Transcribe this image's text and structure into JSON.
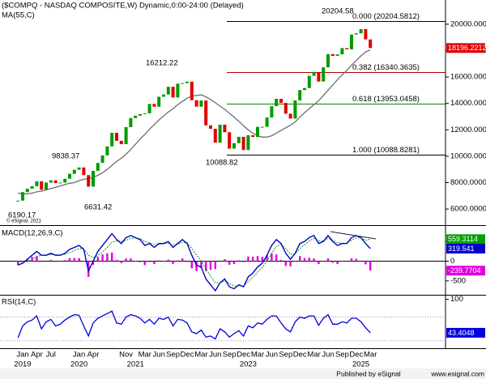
{
  "chart_data": [
    {
      "type": "candlestick",
      "title": "($COMPQ - NASDAQ COMPOSITE,W) Dynamic,0:00-24:00 (Delayed)",
      "categories": [
        null,
        "Jan",
        null,
        null,
        "Apr",
        null,
        null,
        "Jul",
        null,
        null,
        null,
        null,
        null,
        "Jan",
        null,
        null,
        "Apr",
        null,
        null,
        null,
        null,
        null,
        null,
        "Nov",
        null,
        null,
        null,
        "Mar",
        null,
        null,
        "Jun",
        null,
        null,
        "Sep",
        null,
        null,
        "Dec",
        null,
        null,
        "Mar",
        null,
        null,
        "Jun",
        null,
        null,
        "Sep",
        null,
        null,
        "Dec",
        null,
        null,
        "Mar",
        null,
        null,
        "Jun",
        null,
        null,
        "Sep",
        null,
        null,
        "Dec",
        null,
        null,
        "Mar",
        null,
        null,
        "Jun",
        null,
        null,
        "Sep",
        null,
        null,
        "Dec",
        null,
        null,
        "Mar"
      ],
      "category_years": [
        null,
        "2019",
        null,
        null,
        null,
        null,
        null,
        null,
        null,
        null,
        null,
        null,
        null,
        "2020",
        null,
        null,
        null,
        null,
        null,
        null,
        null,
        null,
        null,
        null,
        null,
        "2021",
        null,
        null,
        null,
        null,
        null,
        null,
        null,
        null,
        null,
        null,
        null,
        null,
        null,
        null,
        null,
        null,
        null,
        null,
        null,
        null,
        null,
        null,
        null,
        "2023",
        null,
        null,
        null,
        null,
        null,
        null,
        null,
        null,
        null,
        null,
        null,
        null,
        null,
        null,
        null,
        null,
        null,
        null,
        null,
        null,
        null,
        null,
        null,
        "2025",
        null,
        null
      ],
      "values": [
        6635,
        7281,
        7533,
        7729,
        8095,
        7453,
        8006,
        8175,
        7963,
        7999,
        8292,
        8665,
        8973,
        9150,
        8567,
        7700,
        8890,
        9490,
        10058,
        10745,
        11775,
        11168,
        10912,
        12199,
        12888,
        13070,
        13192,
        13247,
        13962,
        13749,
        14504,
        14673,
        15259,
        14449,
        15498,
        15538,
        15645,
        14240,
        13751,
        14221,
        12335,
        12081,
        11029,
        12391,
        11816,
        10576,
        10988,
        11468,
        10466,
        11585,
        11456,
        12222,
        12227,
        12935,
        13788,
        14346,
        14035,
        13219,
        12851,
        14226,
        15011,
        15164,
        16092,
        16379,
        15658,
        16735,
        17733,
        17599,
        17714,
        18189,
        18095,
        19218,
        19311,
        19627,
        18847,
        18196.2212
      ],
      "up_color": "#009a00",
      "down_color": "#e00000",
      "ma": {
        "name": "MA(55,C)",
        "color": "#6e6e6e",
        "values": [
          7200,
          7150,
          7150,
          7200,
          7300,
          7350,
          7450,
          7550,
          7650,
          7750,
          7850,
          7950,
          8000,
          8150,
          8250,
          8300,
          8400,
          8550,
          8750,
          9000,
          9300,
          9600,
          9850,
          10150,
          10500,
          10900,
          11300,
          11650,
          12050,
          12400,
          12750,
          13050,
          13350,
          13600,
          13900,
          14150,
          14400,
          14550,
          14600,
          14650,
          14500,
          14300,
          14050,
          13800,
          13550,
          13250,
          12950,
          12650,
          12300,
          12000,
          11750,
          11550,
          11450,
          11450,
          11550,
          11750,
          11950,
          12150,
          12350,
          12600,
          12950,
          13300,
          13600,
          13900,
          14200,
          14600,
          15000,
          15400,
          15800,
          16150,
          16500,
          16900,
          17250,
          17600,
          17900,
          18050
        ]
      },
      "ylim": [
        4840,
        20975
      ],
      "yticks": [
        {
          "value": 6000,
          "label": "6000.0000"
        },
        {
          "value": 8000,
          "label": "8000.0000"
        },
        {
          "value": 10000,
          "label": "10000.0000"
        },
        {
          "value": 12000,
          "label": "12000.0000"
        },
        {
          "value": 14000,
          "label": "14000.0000"
        },
        {
          "value": 16000,
          "label": "16000.0000"
        },
        {
          "value": 18000,
          "label": "18000.0000"
        },
        {
          "value": 20000,
          "label": "20000.0000"
        }
      ],
      "fib_levels": [
        {
          "value": 20204.5812,
          "label": "0.000 (20204.5812)",
          "color": "#000000"
        },
        {
          "value": 16340.3635,
          "label": "0.382 (16340.3635)",
          "color": "#b00000"
        },
        {
          "value": 13953.0458,
          "label": "0.618 (13953.0458)",
          "color": "#008a00"
        },
        {
          "value": 10088.8281,
          "label": "1.000 (10088.8281)",
          "color": "#000000"
        }
      ],
      "annotations": [
        "20204.58",
        "16212.22",
        "9838.37",
        "6631.42",
        "6190.17",
        "10088.82"
      ],
      "copyright": "© eSignal, 2021"
    },
    {
      "type": "macd",
      "title": "MACD(12,26,9,C)",
      "macd": {
        "color": "#0000cc",
        "values": [
          -100,
          -50,
          50,
          150,
          250,
          150,
          150,
          200,
          150,
          150,
          200,
          300,
          350,
          400,
          300,
          -250,
          0,
          250,
          400,
          550,
          700,
          550,
          450,
          600,
          650,
          600,
          550,
          400,
          450,
          350,
          450,
          450,
          500,
          350,
          450,
          550,
          450,
          150,
          -100,
          -150,
          -450,
          -600,
          -750,
          -550,
          -450,
          -650,
          -700,
          -600,
          -650,
          -400,
          -300,
          -150,
          -50,
          150,
          400,
          550,
          450,
          200,
          50,
          200,
          450,
          500,
          600,
          650,
          450,
          500,
          650,
          500,
          400,
          450,
          450,
          600,
          650,
          600,
          450,
          319.541
        ]
      },
      "signal": {
        "color": "#00a000",
        "values": [
          0,
          -40,
          -10,
          40,
          120,
          150,
          150,
          170,
          165,
          160,
          175,
          220,
          270,
          320,
          310,
          150,
          90,
          140,
          230,
          350,
          480,
          520,
          500,
          530,
          580,
          590,
          575,
          500,
          470,
          420,
          430,
          440,
          460,
          420,
          430,
          480,
          470,
          330,
          150,
          20,
          -200,
          -380,
          -550,
          -550,
          -500,
          -560,
          -630,
          -620,
          -630,
          -520,
          -410,
          -280,
          -160,
          0,
          200,
          380,
          420,
          320,
          180,
          190,
          320,
          420,
          510,
          580,
          520,
          510,
          580,
          540,
          470,
          460,
          455,
          530,
          590,
          600,
          530,
          559.3114
        ]
      },
      "histogram": {
        "color": "#e000e0",
        "values": [
          -100,
          -10,
          60,
          110,
          130,
          0,
          0,
          30,
          -15,
          -10,
          25,
          80,
          80,
          80,
          -10,
          -400,
          -90,
          110,
          170,
          200,
          220,
          30,
          -50,
          70,
          70,
          10,
          -25,
          -100,
          -20,
          -70,
          20,
          10,
          40,
          -70,
          20,
          70,
          -20,
          -180,
          -250,
          -170,
          -250,
          -220,
          -200,
          0,
          50,
          -90,
          -70,
          20,
          -20,
          120,
          110,
          130,
          110,
          150,
          200,
          170,
          30,
          -120,
          -130,
          10,
          130,
          80,
          90,
          70,
          -70,
          -10,
          70,
          -40,
          -70,
          -10,
          -5,
          70,
          60,
          0,
          -80,
          -239.7704
        ]
      },
      "ylim": [
        -812,
        875
      ],
      "yticks": [
        -500,
        0,
        500
      ]
    },
    {
      "type": "line",
      "title": "RSI(14,C)",
      "color": "#0000dd",
      "values": [
        35,
        55,
        62,
        65,
        72,
        50,
        62,
        66,
        55,
        58,
        65,
        70,
        74,
        73,
        55,
        38,
        60,
        68,
        72,
        76,
        80,
        60,
        58,
        70,
        74,
        72,
        68,
        60,
        66,
        58,
        68,
        66,
        70,
        55,
        66,
        65,
        60,
        45,
        42,
        48,
        36,
        38,
        33,
        50,
        45,
        36,
        42,
        47,
        38,
        55,
        52,
        60,
        58,
        66,
        72,
        72,
        60,
        50,
        45,
        62,
        70,
        68,
        72,
        72,
        56,
        68,
        74,
        58,
        58,
        62,
        60,
        68,
        68,
        62,
        52,
        43.4048
      ],
      "ylim": [
        20,
        105
      ],
      "yticks": [
        100
      ],
      "ref_lines": [
        30,
        70
      ]
    }
  ],
  "footer": {
    "publisher": "Published by eSignal",
    "url": "www.esignal.com"
  }
}
